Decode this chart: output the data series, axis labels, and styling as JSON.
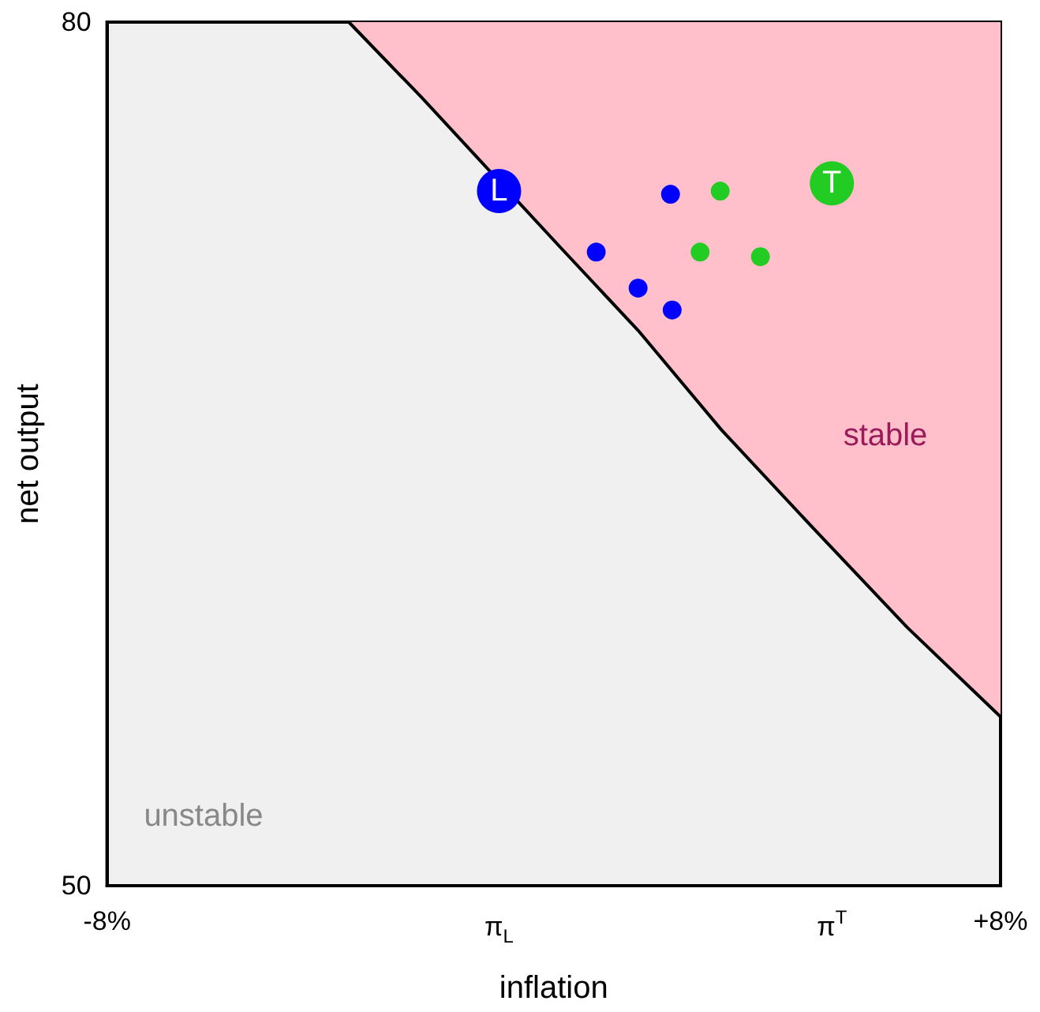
{
  "chart_data": {
    "type": "scatter",
    "xlabel": "inflation",
    "ylabel": "net output",
    "xlim": [
      -8,
      8
    ],
    "ylim": [
      50,
      80
    ],
    "xticks": [
      {
        "value": -8,
        "label": "-8%"
      },
      {
        "value": -0.98,
        "label": "π$_{L}$"
      },
      {
        "value": 4.98,
        "label": "π$^{T}$"
      },
      {
        "value": 8,
        "label": "+8%"
      }
    ],
    "yticks": [
      50,
      80
    ],
    "grid": false,
    "legend": false,
    "marker": "circle",
    "series": [
      {
        "type": "line",
        "color": "#000000",
        "marker": "none",
        "x": [
          -3.67,
          -2.37,
          0.13,
          1.51,
          3.0,
          4.66,
          6.33,
          8
        ],
        "values": [
          80,
          77.39,
          72.15,
          69.29,
          65.84,
          62.39,
          58.97,
          55.87
        ],
        "lower": [
          80,
          77.39,
          72.15,
          69.29,
          65.84,
          62.39,
          58.97,
          55.87
        ],
        "upper": [
          80,
          80,
          80,
          80,
          80,
          80,
          80,
          80
        ]
      },
      {
        "color": "#0000ff",
        "x": [
          2.09,
          0.76,
          1.51,
          2.12
        ],
        "values": [
          74.02,
          72.01,
          70.76,
          70.0
        ]
      },
      {
        "color": "#22cc22",
        "x": [
          2.98,
          2.62,
          3.7
        ],
        "values": [
          74.13,
          72.01,
          71.85
        ]
      },
      {
        "type": "bubble",
        "name": "L",
        "color": "#0000ff",
        "x": [
          -0.98
        ],
        "values": [
          74.13
        ],
        "sizes": [
          1
        ]
      },
      {
        "type": "bubble",
        "name": "T",
        "color": "#22cc22",
        "x": [
          4.98
        ],
        "values": [
          74.4
        ],
        "sizes": [
          1
        ]
      }
    ],
    "annotations": [
      "stable",
      "unstable"
    ]
  }
}
